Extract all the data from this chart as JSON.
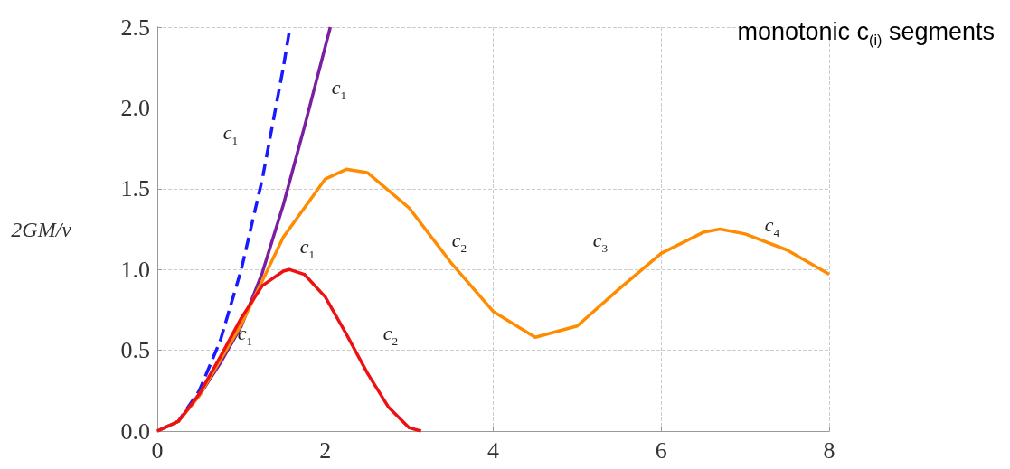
{
  "chart_data": {
    "type": "line",
    "xlabel": null,
    "ylabel": "2GM/v",
    "xlim": [
      0,
      8
    ],
    "xticks": [
      0,
      2,
      4,
      6,
      8
    ],
    "ylim": [
      0,
      2.5
    ],
    "yticks": [
      {
        "value": 0,
        "label": "0.0"
      },
      {
        "value": 0.5,
        "label": "0.5"
      },
      {
        "value": 1,
        "label": "1.0"
      },
      {
        "value": 1.5,
        "label": "1.5"
      },
      {
        "value": 2,
        "label": "2.0"
      },
      {
        "value": 2.5,
        "label": "2.5"
      }
    ],
    "grid": true,
    "marker": "none",
    "series": [
      {
        "color": "#1a1aff",
        "line_style": "dashed",
        "x": [
          0,
          0.25,
          0.5,
          0.75,
          1,
          1.25,
          1.5,
          1.58
        ],
        "values": [
          0,
          0.06,
          0.25,
          0.56,
          1,
          1.56,
          2.25,
          2.5
        ]
      },
      {
        "color": "#7b1fa2",
        "line_style": "solid",
        "x": [
          0,
          0.25,
          0.5,
          0.75,
          1,
          1.25,
          1.5,
          1.75,
          2.06
        ],
        "values": [
          0,
          0.06,
          0.22,
          0.42,
          0.65,
          0.98,
          1.4,
          1.88,
          2.5
        ]
      },
      {
        "color": "#ff8c00",
        "line_style": "solid",
        "x": [
          0,
          0.25,
          0.5,
          1,
          1.5,
          2,
          2.25,
          2.5,
          3,
          3.5,
          4,
          4.5,
          5,
          5.5,
          6,
          6.5,
          6.7,
          7,
          7.5,
          8
        ],
        "values": [
          0,
          0.06,
          0.22,
          0.66,
          1.2,
          1.56,
          1.62,
          1.6,
          1.38,
          1.04,
          0.74,
          0.58,
          0.65,
          0.88,
          1.1,
          1.23,
          1.25,
          1.22,
          1.12,
          0.97
        ]
      },
      {
        "color": "#ee1111",
        "line_style": "solid",
        "x": [
          0,
          0.25,
          0.5,
          0.75,
          1,
          1.25,
          1.5,
          1.57,
          1.75,
          2,
          2.25,
          2.5,
          2.75,
          3,
          3.14
        ],
        "values": [
          0,
          0.06,
          0.23,
          0.46,
          0.7,
          0.9,
          0.99,
          1,
          0.97,
          0.83,
          0.6,
          0.36,
          0.15,
          0.02,
          0
        ]
      }
    ],
    "annotations": [
      "c$_{1}$",
      "c$_{1}$",
      "c$_{1}$",
      "c$_{1}$",
      "c$_{2}$",
      "c$_{2}$",
      "c$_{3}$",
      "c$_{4}$",
      "monotonic c$_{(i)}$ segments"
    ]
  }
}
